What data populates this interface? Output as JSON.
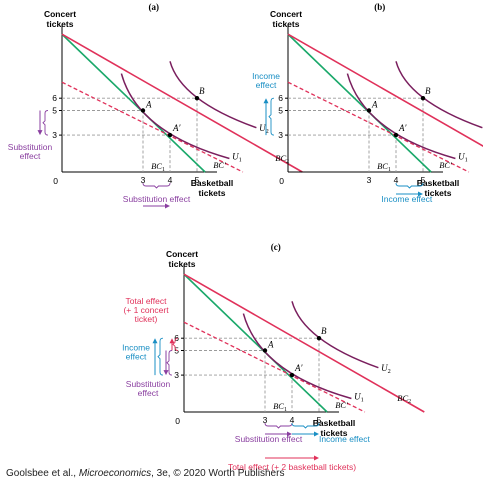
{
  "colors": {
    "bc_red": "#e0315a",
    "bc_green": "#1aa86a",
    "u_purple": "#7a1f5e",
    "substitution": "#8a3fa0",
    "income": "#1a8fc4",
    "total": "#e0315a",
    "guide": "#9a9a9a",
    "axis": "#000000"
  },
  "labels": {
    "y_axis": [
      "Concert",
      "tickets"
    ],
    "x_axis": [
      "Basketball",
      "tickets"
    ],
    "origin": "0",
    "point_a": "A",
    "point_a_prime": "A′",
    "point_b": "B",
    "u1": "U",
    "u1_sub": "1",
    "u2": "U",
    "u2_sub": "2",
    "bc1": "BC",
    "bc1_sub": "1",
    "bc2": "BC",
    "bc2_sub": "2",
    "bc_prime": "BC′"
  },
  "ticks": {
    "y": [
      "6",
      "5",
      "3"
    ],
    "x": [
      "3",
      "4",
      "5"
    ]
  },
  "panels": [
    {
      "id": "a",
      "title": "(a)",
      "side_effect_lines": [
        "Substitution",
        "effect"
      ],
      "bottom_effect": "Substitution effect"
    },
    {
      "id": "b",
      "title": "(b)",
      "side_effect_lines": [
        "Income",
        "effect"
      ],
      "bottom_effect": "Income effect"
    },
    {
      "id": "c",
      "title": "(c)",
      "total_effect_lines": [
        "Total effect",
        "(+ 1 concert",
        "ticket)"
      ],
      "income_lines": [
        "Income",
        "effect"
      ],
      "substitution_lines": [
        "Substitution",
        "effect"
      ],
      "bottom_substitution": "Substitution effect",
      "bottom_income": "Income effect",
      "bottom_total": "Total effect (+ 2 basketball tickets)"
    }
  ],
  "credit": {
    "prefix": "Goolsbee et al., ",
    "title": "Microeconomics",
    "suffix": ", 3e, © 2020 Worth Publishers"
  }
}
